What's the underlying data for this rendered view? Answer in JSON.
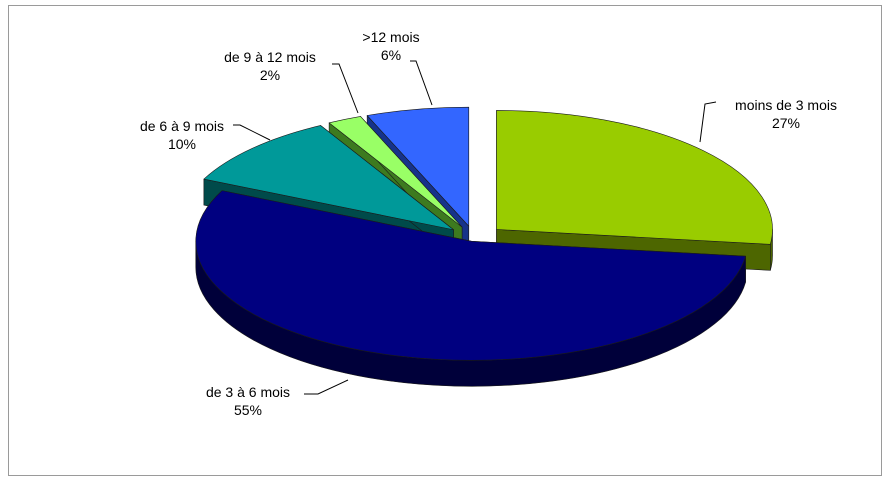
{
  "chart_data": {
    "type": "pie",
    "title": "",
    "style": "3d-exploded",
    "legend": "none",
    "slices": [
      {
        "label": "moins de 3 mois",
        "value": 27,
        "value_label": "27%",
        "color": "#99CC00",
        "side_color": "#4D6600"
      },
      {
        "label": "de 3 à 6 mois",
        "value": 55,
        "value_label": "55%",
        "color": "#000080",
        "side_color": "#00003A"
      },
      {
        "label": "de 6 à 9 mois",
        "value": 10,
        "value_label": "10%",
        "color": "#009999",
        "side_color": "#004A4A"
      },
      {
        "label": "de 9 à 12 mois",
        "value": 2,
        "value_label": "2%",
        "color": "#99FF66",
        "side_color": "#3D7A1F"
      },
      {
        "label": ">12 mois",
        "value": 6,
        "value_label": "6%",
        "color": "#3366FF",
        "side_color": "#16338A"
      }
    ]
  }
}
